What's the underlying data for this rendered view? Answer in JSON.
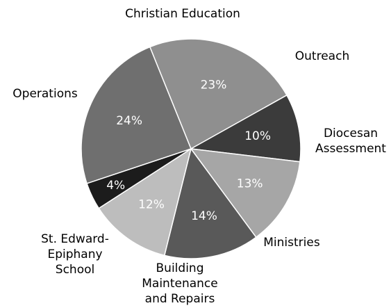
{
  "chart_data": {
    "type": "pie",
    "title": "",
    "slices": [
      {
        "label_lines": [
          "Christian Education"
        ],
        "value": 23,
        "value_label": "23%",
        "color": "#8f8f8f"
      },
      {
        "label_lines": [
          "Outreach"
        ],
        "value": 10,
        "value_label": "10%",
        "color": "#3b3b3b"
      },
      {
        "label_lines": [
          "Diocesan",
          "Assessment"
        ],
        "value": 13,
        "value_label": "13%",
        "color": "#a6a6a6"
      },
      {
        "label_lines": [
          "Ministries"
        ],
        "value": 14,
        "value_label": "14%",
        "color": "#595959"
      },
      {
        "label_lines": [
          "Building",
          "Maintenance",
          "and Repairs"
        ],
        "value": 12,
        "value_label": "12%",
        "color": "#bdbdbd"
      },
      {
        "label_lines": [
          "St. Edward-",
          "Epiphany",
          "School"
        ],
        "value": 4,
        "value_label": "4%",
        "color": "#1c1c1c"
      },
      {
        "label_lines": [
          "Operations"
        ],
        "value": 24,
        "value_label": "24%",
        "color": "#6f6f6f"
      }
    ]
  }
}
